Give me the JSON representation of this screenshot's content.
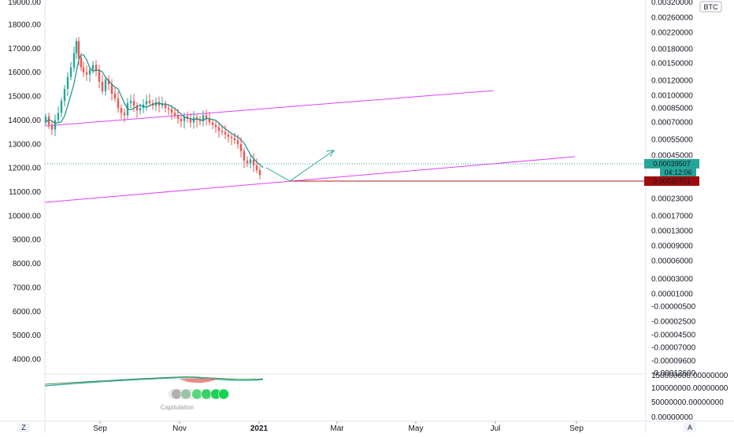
{
  "chart_data": {
    "type": "candlestick",
    "series_label": "",
    "currency_badge": "BTC",
    "left_axis": {
      "ticks": [
        "18000.00",
        "17000.00",
        "16000.00",
        "15000.00",
        "14000.00",
        "13000.00",
        "12000.00",
        "11000.00",
        "10000.00",
        "9000.00",
        "8000.00",
        "7000.00",
        "6000.00",
        "5000.00",
        "4000.00"
      ],
      "tick_values": [
        18000,
        17000,
        16000,
        15000,
        14000,
        13000,
        12000,
        11000,
        10000,
        9000,
        8000,
        7000,
        6000,
        5000,
        4000
      ],
      "partial_top": "19000.00"
    },
    "right_axis": {
      "ticks": [
        "0.00260000",
        "0.00220000",
        "0.00180000",
        "0.00150000",
        "0.00120000",
        "0.00100000",
        "0.00085000",
        "0.00070000",
        "0.00055000",
        "0.00045000",
        "0.00030701",
        "0.00023000",
        "0.00017000",
        "0.00013000",
        "0.00009000",
        "0.00006000",
        "0.00003000",
        "0.00001000",
        "-0.00000500",
        "-0.00002500",
        "-0.00004500",
        "-0.00007000",
        "-0.00009600"
      ],
      "partial_top": "0.00320000",
      "partial_bottom": "-0.00012600",
      "last_price": "0.00039507",
      "countdown": "04:12:06",
      "line_price": "0.00030701"
    },
    "x_axis": {
      "ticks": [
        "Sep",
        "Nov",
        "2021",
        "Mar",
        "May",
        "Jul",
        "Sep"
      ]
    },
    "ohlc_approx": [
      {
        "period": "Jul-late",
        "open": 13900,
        "high": 14500,
        "low": 13400,
        "close": 14100
      },
      {
        "period": "Aug-early",
        "open": 14100,
        "high": 16500,
        "low": 13800,
        "close": 16100
      },
      {
        "period": "Aug-mid",
        "open": 16100,
        "high": 17800,
        "low": 15600,
        "close": 16400
      },
      {
        "period": "Aug-late",
        "open": 16400,
        "high": 16900,
        "low": 15700,
        "close": 16000
      },
      {
        "period": "Sep",
        "open": 16000,
        "high": 16300,
        "low": 14800,
        "close": 15200
      },
      {
        "period": "Sep-late",
        "open": 15200,
        "high": 15500,
        "low": 14000,
        "close": 14500
      },
      {
        "period": "Oct",
        "open": 14500,
        "high": 15100,
        "low": 14200,
        "close": 14700
      },
      {
        "period": "Oct-late",
        "open": 14700,
        "high": 15000,
        "low": 13900,
        "close": 14300
      },
      {
        "period": "Nov",
        "open": 14300,
        "high": 14700,
        "low": 13900,
        "close": 14200
      },
      {
        "period": "Nov-late",
        "open": 14200,
        "high": 14500,
        "low": 13500,
        "close": 13800
      },
      {
        "period": "Dec",
        "open": 13800,
        "high": 14000,
        "low": 12900,
        "close": 13100
      },
      {
        "period": "Dec-late",
        "open": 13100,
        "high": 13200,
        "low": 11800,
        "close": 12000
      }
    ],
    "trendlines": [
      {
        "color": "#e040fb",
        "from": [
          "Jul",
          13800
        ],
        "to": [
          "Jun",
          15220
        ]
      },
      {
        "color": "#e040fb",
        "from": [
          "Jul",
          10550
        ],
        "to": [
          "Aug",
          12480
        ]
      }
    ],
    "horizontal_line": {
      "value": "0.00030701",
      "color": "#b71c1c"
    },
    "projection_arrow": {
      "color": "#26a69a"
    },
    "subpane": {
      "right_ticks": [
        "150000000.00000000",
        "100000000.00000000",
        "50000000.00000000",
        "0.00000000"
      ],
      "label": "Capitulation"
    },
    "colors": {
      "up": "#26a69a",
      "down": "#ef5350",
      "ma": "#1b8f8a",
      "trend": "#e040fb",
      "last_price_bg": "#26a69a",
      "line_price_bg": "#9e0d0d"
    }
  },
  "footer": {
    "left_button": "Z",
    "right_button": "A"
  }
}
